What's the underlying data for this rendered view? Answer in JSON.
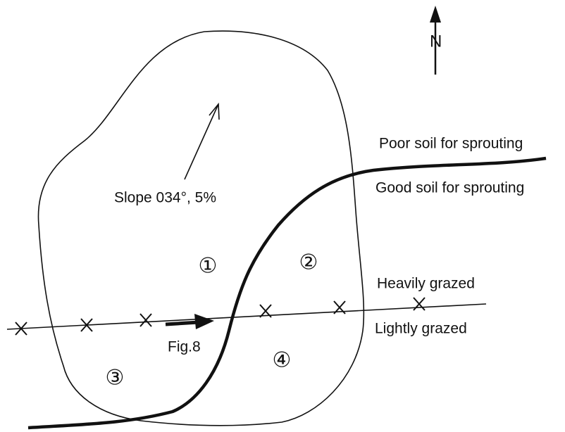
{
  "north": "N",
  "slope": "Slope 034°, 5%",
  "soil": {
    "poor": "Poor soil for sprouting",
    "good": "Good soil for sprouting"
  },
  "grazing": {
    "heavy": "Heavily grazed",
    "light": "Lightly grazed"
  },
  "figure": "Fig.8",
  "zones": [
    "①",
    "②",
    "③",
    "④"
  ]
}
